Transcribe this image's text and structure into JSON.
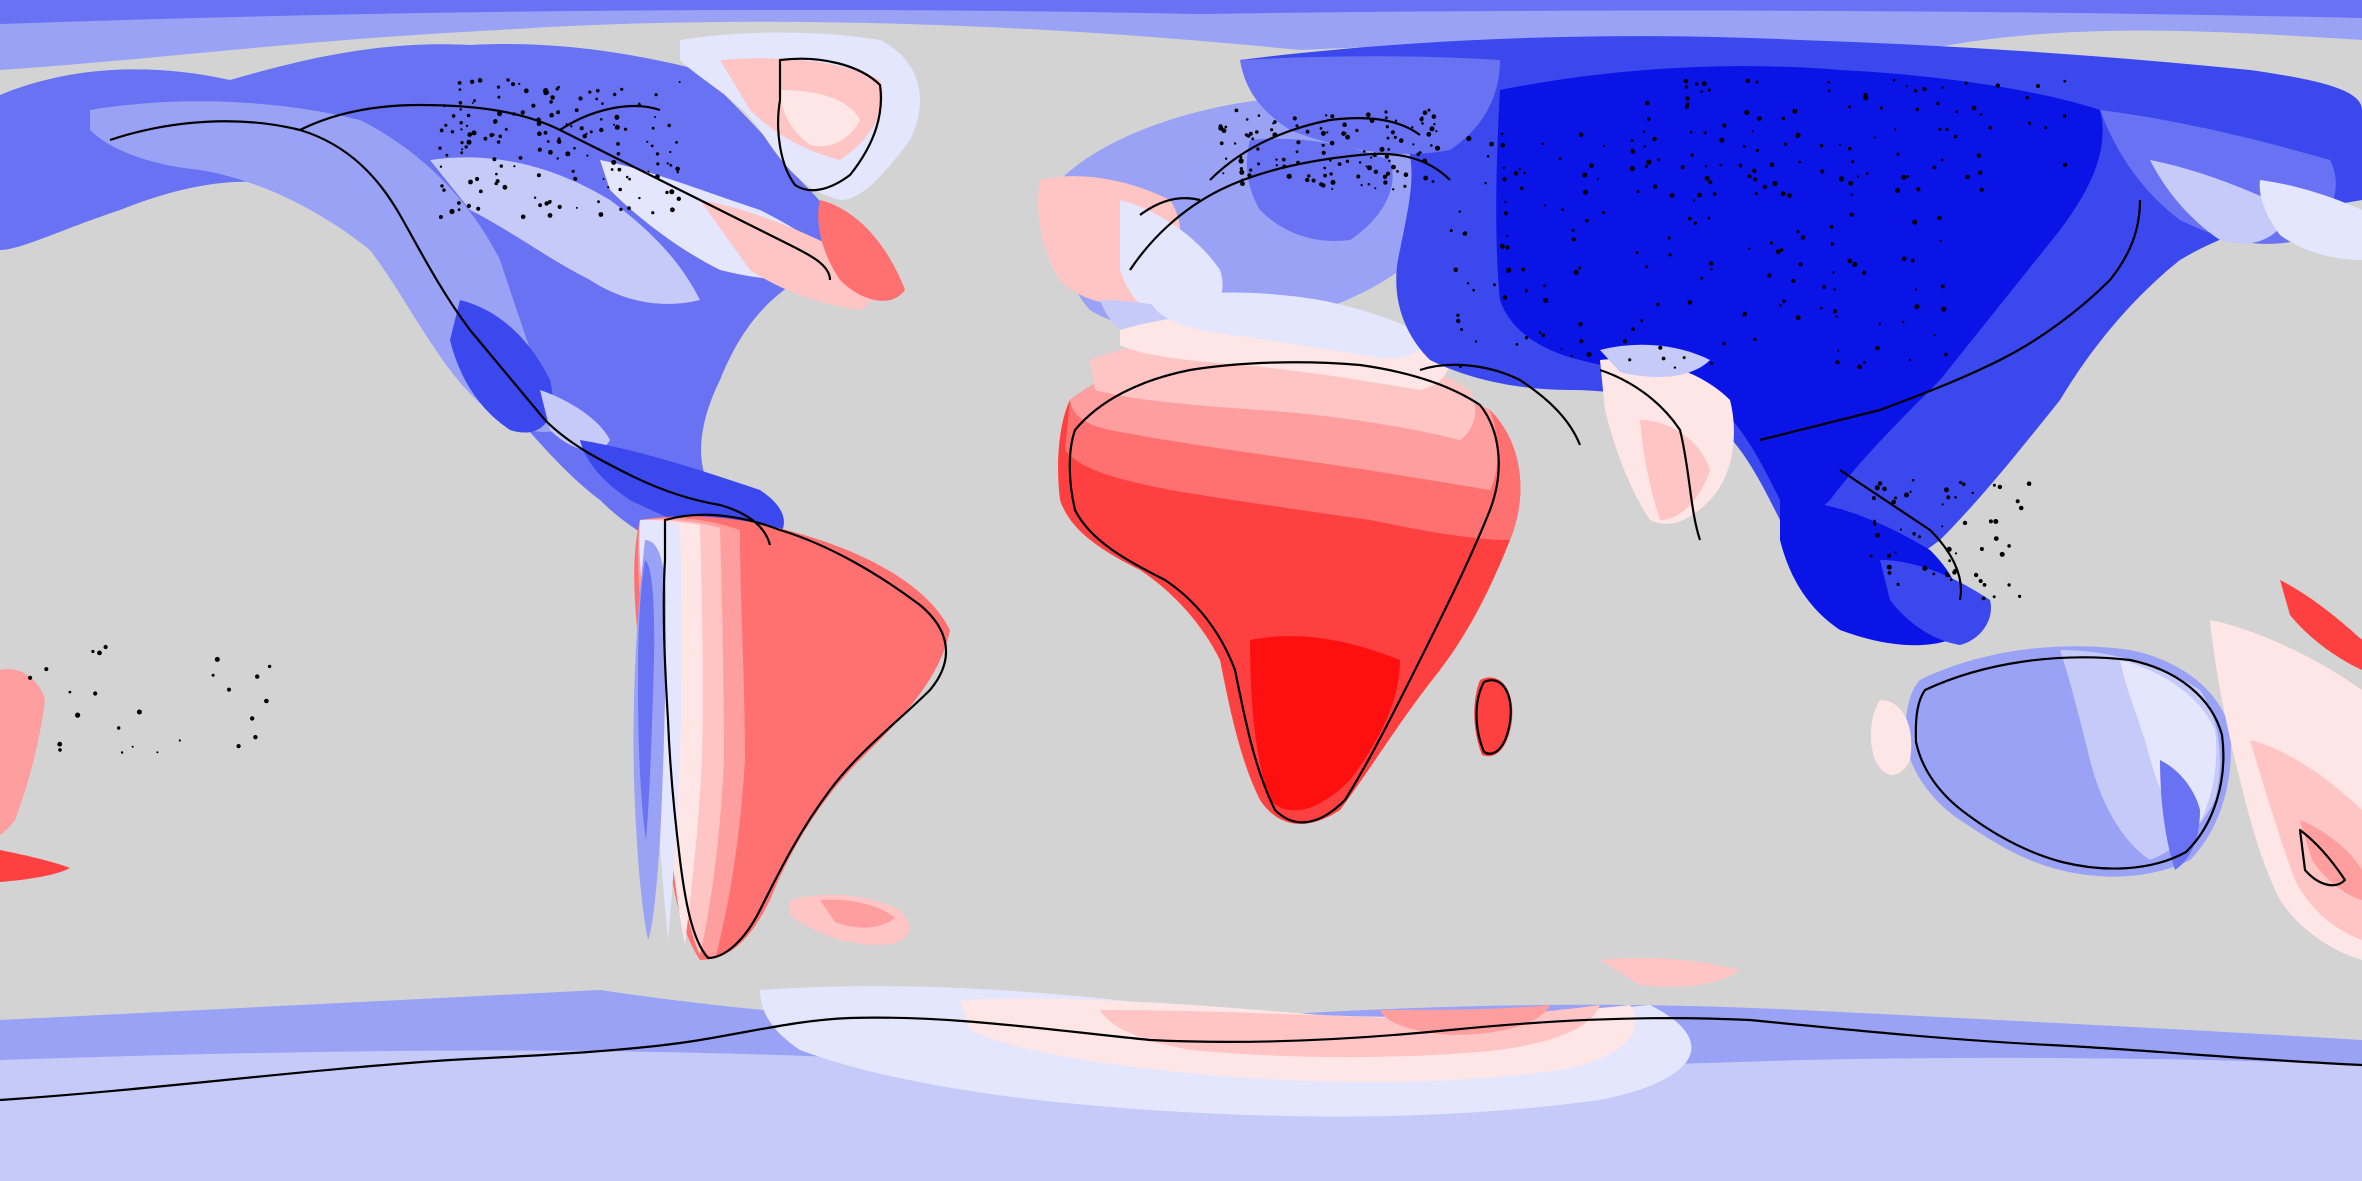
{
  "map": {
    "projection": "equirectangular",
    "background": "#d3d3d3",
    "coastline_color": "#000000",
    "palette": {
      "deep_blue": "#0a14e6",
      "blue": "#3a48ee",
      "mid_blue": "#6872f2",
      "light_blue": "#9aa2f6",
      "pale_blue": "#c6caf9",
      "faint_blue": "#e4e6fd",
      "faint_red": "#ffe6e6",
      "pale_red": "#ffc4c4",
      "light_red": "#ff9e9e",
      "mid_red": "#ff7070",
      "red": "#ff4040",
      "deep_red": "#ff1010"
    },
    "features": [
      "north-america",
      "greenland",
      "south-america",
      "europe",
      "africa",
      "madagascar",
      "asia",
      "australia",
      "new-zealand",
      "antarctica"
    ]
  }
}
